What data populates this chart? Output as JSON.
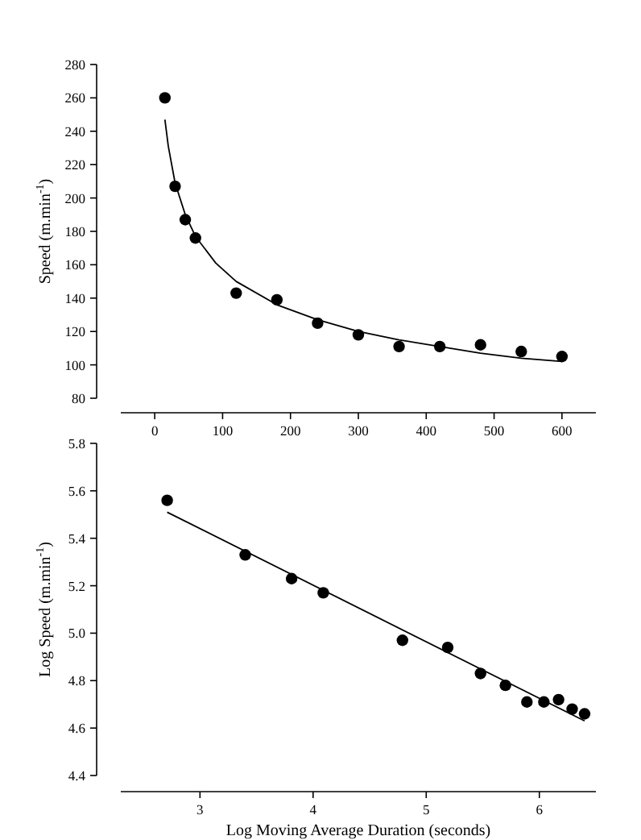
{
  "chart_data": [
    {
      "type": "scatter",
      "ylabel": "Speed (m.min$^{-1}$)",
      "xlim": [
        -50,
        650
      ],
      "ylim": [
        80,
        280
      ],
      "xticks": [
        0,
        100,
        200,
        300,
        400,
        500,
        600
      ],
      "yticks": [
        80,
        100,
        120,
        140,
        160,
        180,
        200,
        220,
        240,
        260,
        280
      ],
      "marker": "circle",
      "grid": false,
      "series": [
        {
          "color": "#000000",
          "x": [
            15,
            30,
            45,
            60,
            120,
            180,
            240,
            300,
            360,
            420,
            480,
            540,
            600
          ],
          "values": [
            260,
            207,
            187,
            176,
            143,
            139,
            125,
            118,
            111,
            111,
            112,
            108,
            105
          ]
        },
        {
          "type": "line",
          "color": "#000000",
          "marker": "none",
          "line_style": "solid",
          "x": [
            15,
            20,
            30,
            45,
            60,
            90,
            120,
            180,
            240,
            300,
            360,
            420,
            480,
            540,
            600
          ],
          "values": [
            247,
            231,
            209,
            190,
            177,
            161,
            150,
            136,
            127,
            120,
            115,
            111,
            107,
            104,
            102
          ]
        }
      ]
    },
    {
      "type": "scatter",
      "ylabel": "Log Speed (m.min$^{-1}$)",
      "xlabel": "Log Moving Average Duration (seconds)",
      "xlim": [
        2.3,
        6.5
      ],
      "ylim": [
        4.4,
        5.8
      ],
      "xticks": [
        3,
        4,
        5,
        6
      ],
      "yticks": [
        {
          "value": 4.4,
          "label": "4.4"
        },
        {
          "value": 4.6,
          "label": "4.6"
        },
        {
          "value": 4.8,
          "label": "4.8"
        },
        {
          "value": 5.0,
          "label": "5.0"
        },
        {
          "value": 5.2,
          "label": "5.2"
        },
        {
          "value": 5.4,
          "label": "5.4"
        },
        {
          "value": 5.6,
          "label": "5.6"
        },
        {
          "value": 5.8,
          "label": "5.8"
        }
      ],
      "marker": "circle",
      "grid": false,
      "series": [
        {
          "color": "#000000",
          "x": [
            2.71,
            3.4,
            3.81,
            4.09,
            4.79,
            5.19,
            5.48,
            5.7,
            5.89,
            6.04,
            6.17,
            6.29,
            6.4
          ],
          "values": [
            5.56,
            5.33,
            5.23,
            5.17,
            4.97,
            4.94,
            4.83,
            4.78,
            4.71,
            4.71,
            4.72,
            4.68,
            4.66
          ]
        },
        {
          "type": "line",
          "color": "#000000",
          "marker": "none",
          "line_style": "solid",
          "x": [
            2.71,
            6.4
          ],
          "values": [
            5.51,
            4.63
          ]
        }
      ]
    }
  ]
}
